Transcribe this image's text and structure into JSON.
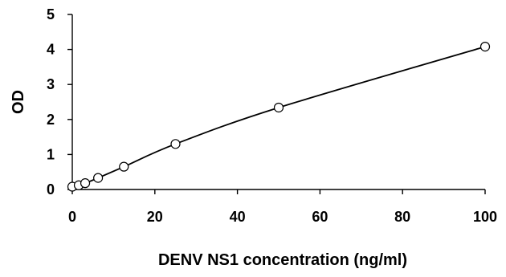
{
  "chart_data": {
    "type": "scatter",
    "title": "",
    "xlabel": "DENV NS1 concentration (ng/ml)",
    "ylabel": "OD",
    "xlim": [
      0,
      100
    ],
    "ylim": [
      0,
      5
    ],
    "xticks": [
      0,
      20,
      40,
      60,
      80,
      100
    ],
    "yticks": [
      0,
      1,
      2,
      3,
      4,
      5
    ],
    "grid": false,
    "legend": "none",
    "series": [
      {
        "x": [
          0,
          1.5625,
          3.125,
          6.25,
          12.5,
          25,
          50,
          100
        ],
        "y": [
          0.08,
          0.12,
          0.18,
          0.33,
          0.65,
          1.3,
          2.34,
          4.08
        ],
        "marker": "open-circle",
        "fit_line": true
      }
    ],
    "colors": {
      "marks": "#000000",
      "background": "#ffffff"
    }
  }
}
